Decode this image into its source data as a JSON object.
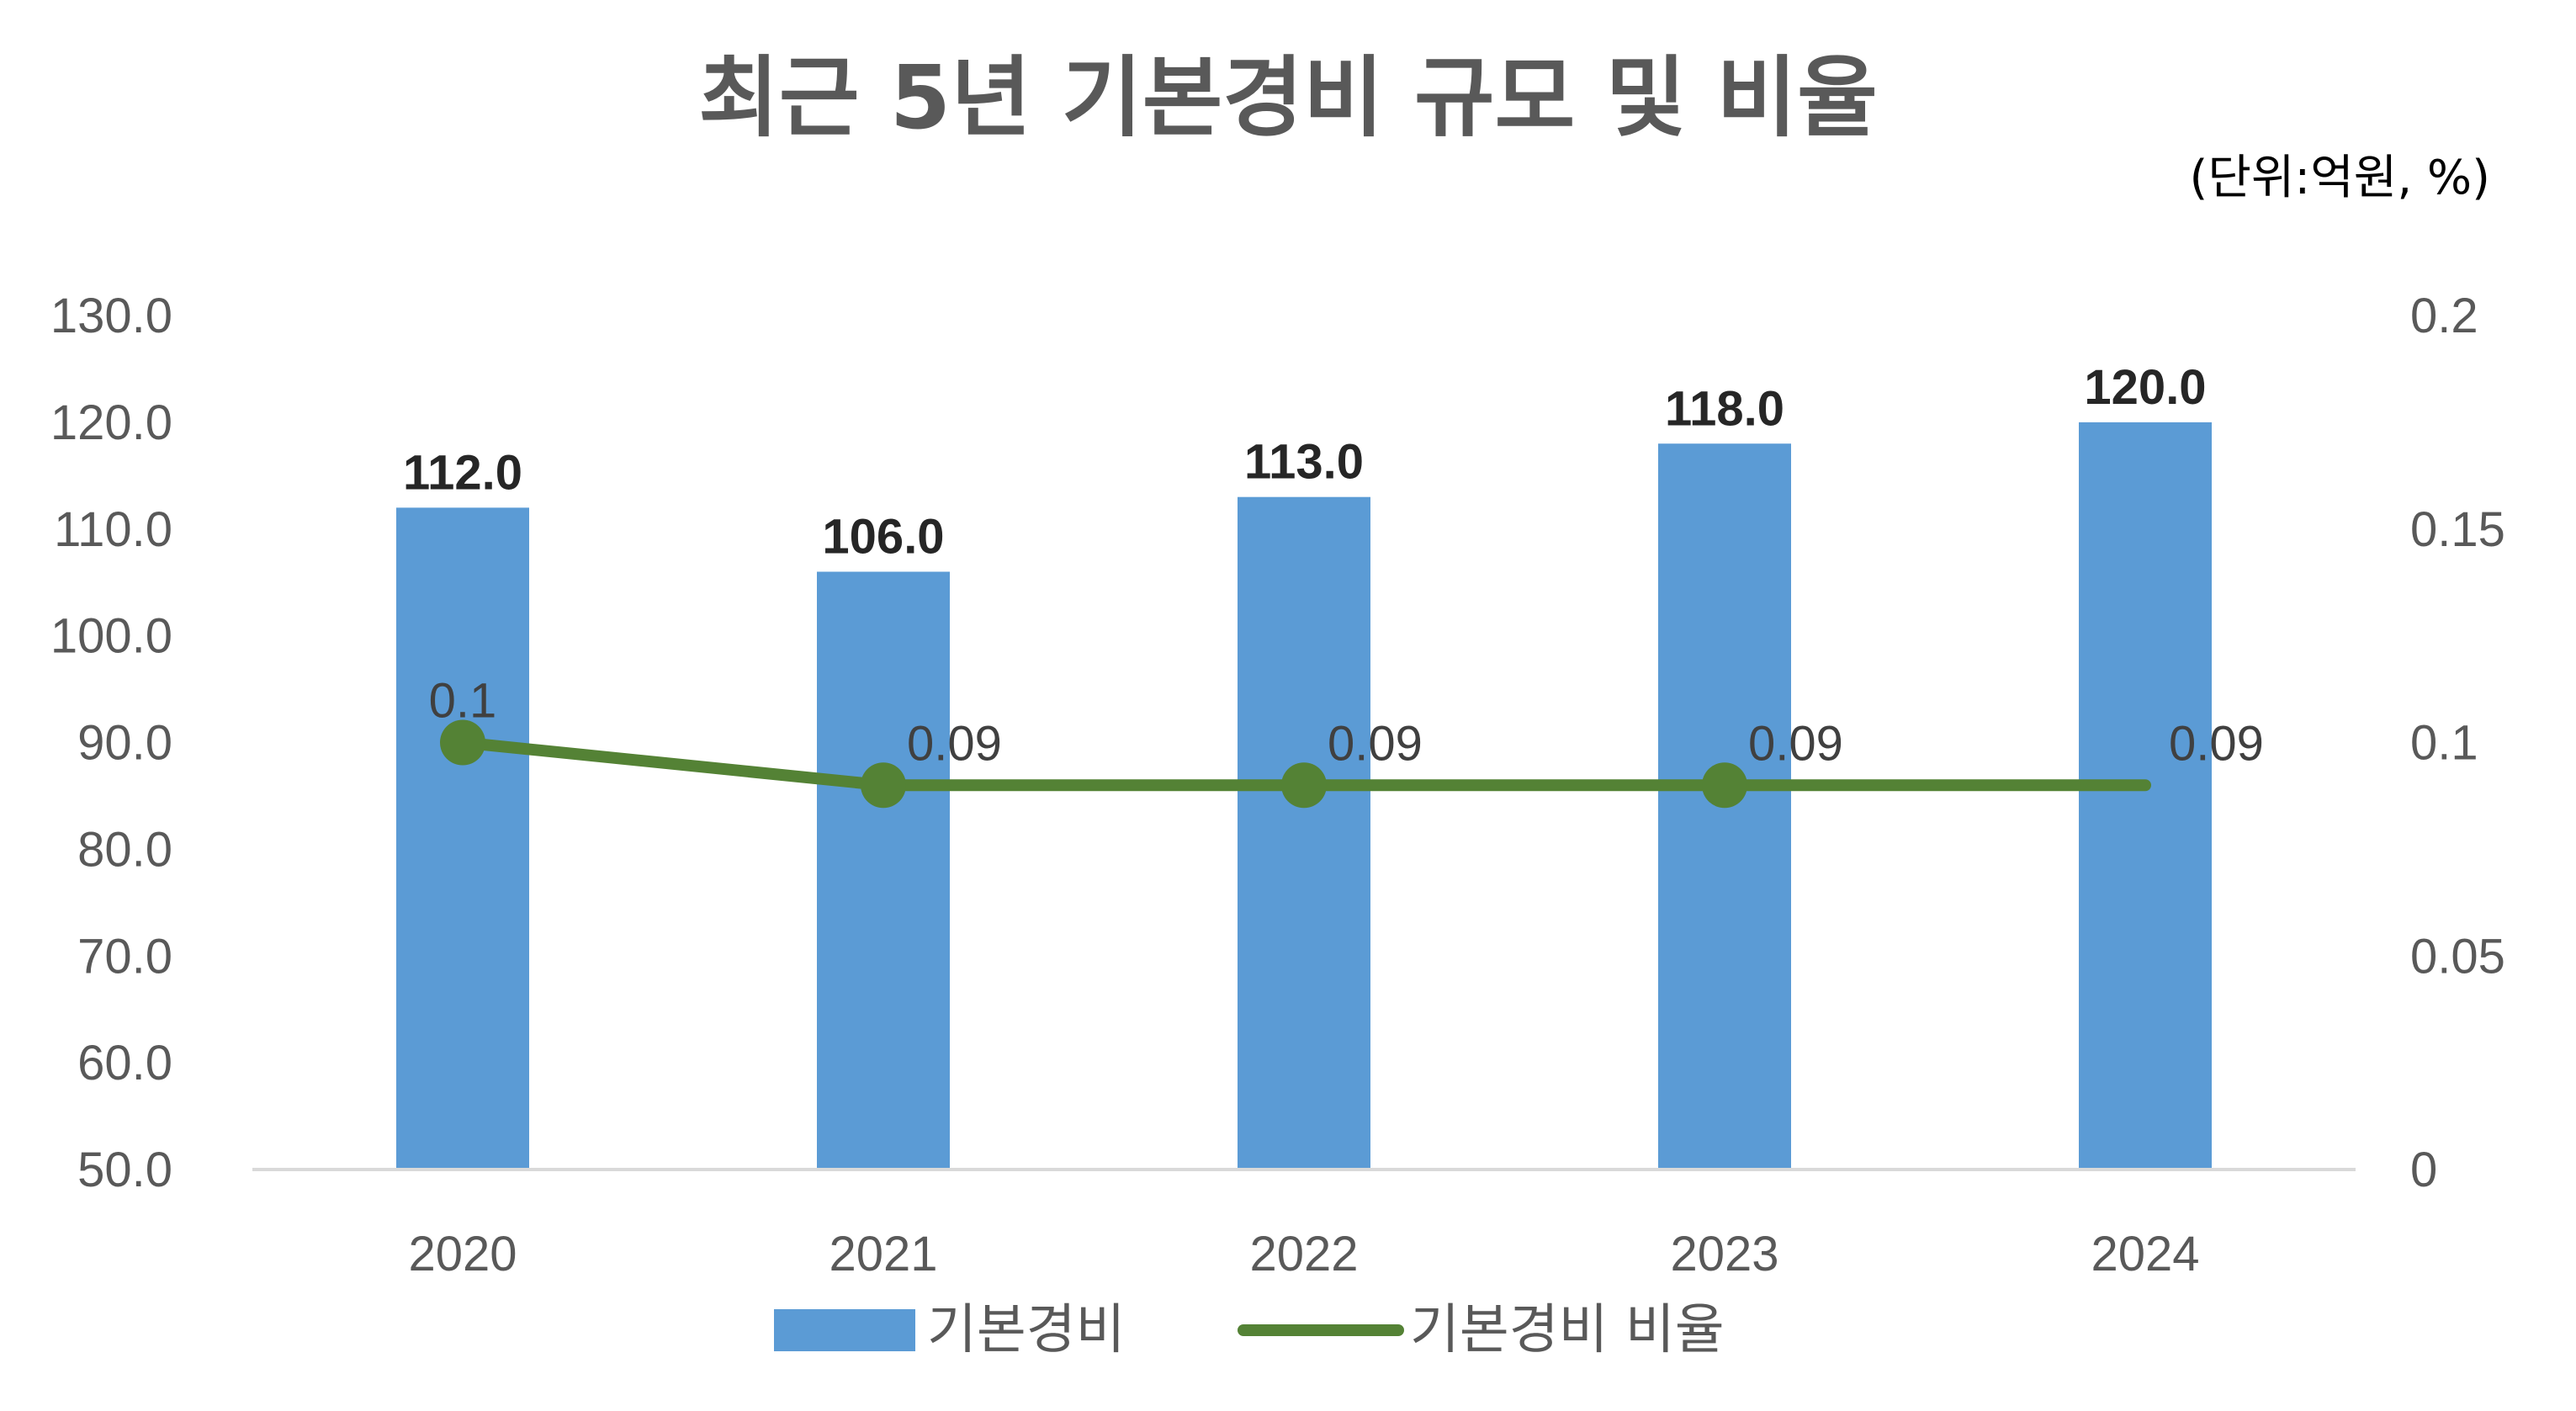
{
  "chart_data": {
    "type": "bar",
    "title": "최근 5년 기본경비 규모 및 비율",
    "unit_note": "(단위:억원, %)",
    "categories": [
      "2020",
      "2021",
      "2022",
      "2023",
      "2024"
    ],
    "series": [
      {
        "name": "기본경비",
        "type": "bar",
        "axis": "left",
        "values": [
          112.0,
          106.0,
          113.0,
          118.0,
          120.0
        ],
        "labels": [
          "112.0",
          "106.0",
          "113.0",
          "118.0",
          "120.0"
        ],
        "color": "#5B9BD5"
      },
      {
        "name": "기본경비 비율",
        "type": "line",
        "axis": "right",
        "values": [
          0.1,
          0.09,
          0.09,
          0.09,
          0.09
        ],
        "labels": [
          "0.1",
          "0.09",
          "0.09",
          "0.09",
          "0.09"
        ],
        "color": "#548235"
      }
    ],
    "y_left": {
      "ylim": [
        50,
        130
      ],
      "ticks": [
        50,
        60,
        70,
        80,
        90,
        100,
        110,
        120,
        130
      ],
      "tick_labels": [
        "50.0",
        "60.0",
        "70.0",
        "80.0",
        "90.0",
        "100.0",
        "110.0",
        "120.0",
        "130.0"
      ]
    },
    "y_right": {
      "ylim": [
        0,
        0.2
      ],
      "ticks": [
        0,
        0.05,
        0.1,
        0.15,
        0.2
      ],
      "tick_labels": [
        "0",
        "0.05",
        "0.1",
        "0.15",
        "0.2"
      ]
    },
    "grid": false,
    "legend_position": "bottom"
  }
}
